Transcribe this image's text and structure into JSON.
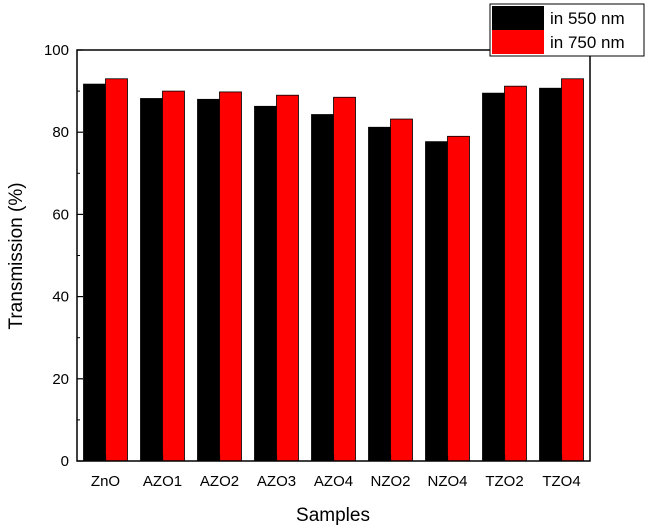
{
  "chart_data": {
    "type": "bar",
    "xlabel": "Samples",
    "ylabel": "Transmission (%)",
    "ylim": [
      0,
      100
    ],
    "yticks": [
      0,
      20,
      40,
      60,
      80,
      100
    ],
    "categories": [
      "ZnO",
      "AZO1",
      "AZO2",
      "AZO3",
      "AZO4",
      "NZO2",
      "NZO4",
      "TZO2",
      "TZO4"
    ],
    "series": [
      {
        "name": "in 550 nm",
        "color": "#000000",
        "values": [
          91.7,
          88.2,
          88.0,
          86.3,
          84.3,
          81.2,
          77.7,
          89.5,
          90.7
        ]
      },
      {
        "name": "in 750 nm",
        "color": "#ff0000",
        "values": [
          93.0,
          90.0,
          89.8,
          89.0,
          88.5,
          83.2,
          79.0,
          91.2,
          93.0
        ]
      }
    ],
    "legend_position": "top-right",
    "grid": false
  }
}
